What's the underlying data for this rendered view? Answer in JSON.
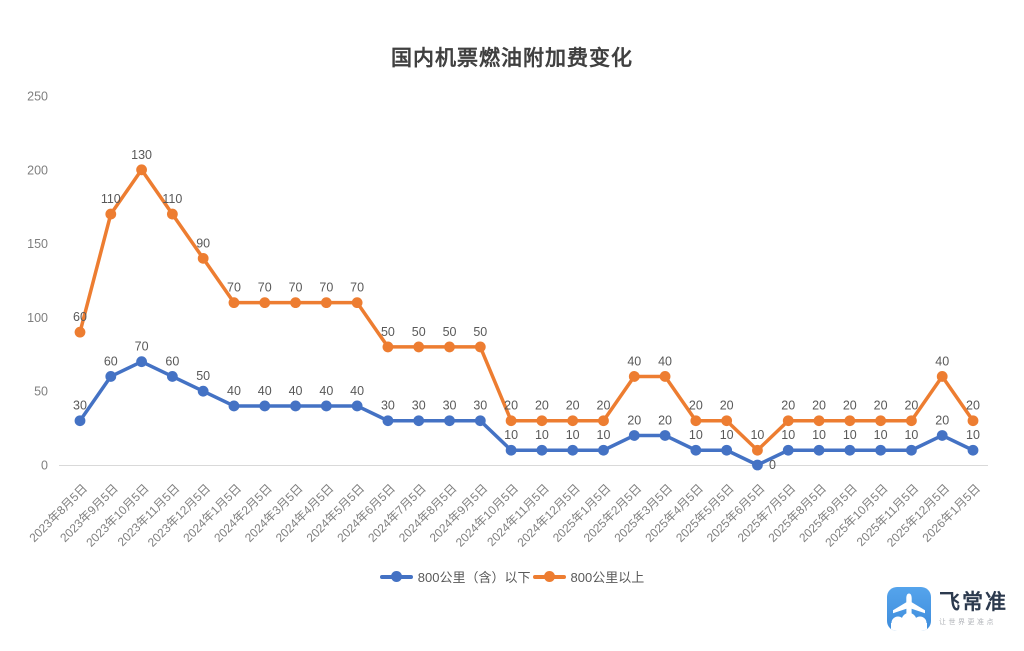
{
  "chart_data": {
    "type": "line",
    "title": "国内机票燃油附加费变化",
    "stacked": true,
    "categories": [
      "2023年8月5日",
      "2023年9月5日",
      "2023年10月5日",
      "2023年11月5日",
      "2023年12月5日",
      "2024年1月5日",
      "2024年2月5日",
      "2024年3月5日",
      "2024年4月5日",
      "2024年5月5日",
      "2024年6月5日",
      "2024年7月5日",
      "2024年8月5日",
      "2024年9月5日",
      "2024年10月5日",
      "2024年11月5日",
      "2024年12月5日",
      "2025年1月5日",
      "2025年2月5日",
      "2025年3月5日",
      "2025年4月5日",
      "2025年5月5日",
      "2025年6月5日",
      "2025年7月5日",
      "2025年8月5日",
      "2025年9月5日",
      "2025年10月5日",
      "2025年11月5日",
      "2025年12月5日",
      "2026年1月5日"
    ],
    "series": [
      {
        "name": "800公里（含）以下",
        "color": "#4472C4",
        "values": [
          30,
          60,
          70,
          60,
          50,
          40,
          40,
          40,
          40,
          40,
          30,
          30,
          30,
          30,
          10,
          10,
          10,
          10,
          20,
          20,
          10,
          10,
          0,
          10,
          10,
          10,
          10,
          10,
          20,
          10
        ]
      },
      {
        "name": "800公里以上",
        "color": "#ED7D31",
        "values": [
          60,
          110,
          130,
          110,
          90,
          70,
          70,
          70,
          70,
          70,
          50,
          50,
          50,
          50,
          20,
          20,
          20,
          20,
          40,
          40,
          20,
          20,
          10,
          20,
          20,
          20,
          20,
          20,
          40,
          20
        ]
      }
    ],
    "ylim": [
      0,
      250
    ],
    "y_ticks": [
      0,
      50,
      100,
      150,
      200,
      250
    ],
    "grid": false,
    "data_labels": true,
    "legend_position": "bottom"
  },
  "branding": {
    "name": "飞常准",
    "tagline": "让世界更准点"
  },
  "colors": {
    "title_text": "#404040",
    "axis_text": "#7f7f7f",
    "data_label": "#595959",
    "axis_line": "#d9d9d9",
    "brand_blue_top": "#55a4ec",
    "brand_blue_bottom": "#3e8cdb"
  }
}
